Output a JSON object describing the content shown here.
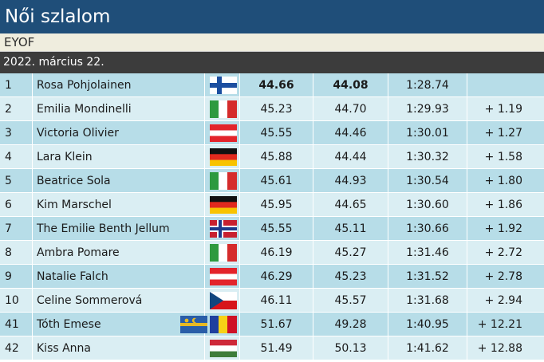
{
  "header": {
    "title": "Női szlalom",
    "subtitle": "EYOF",
    "date": "2022. március 22."
  },
  "results": [
    {
      "rank": "1",
      "name": "Rosa Pohjolainen",
      "flag": "finland-flag",
      "run1": "44.66",
      "run2": "44.08",
      "total": "1:28.74",
      "diff": "",
      "best": true
    },
    {
      "rank": "2",
      "name": "Emilia Mondinelli",
      "flag": "italy-flag",
      "run1": "45.23",
      "run2": "44.70",
      "total": "1:29.93",
      "diff": "+ 1.19"
    },
    {
      "rank": "3",
      "name": "Victoria Olivier",
      "flag": "austria-flag",
      "run1": "45.55",
      "run2": "44.46",
      "total": "1:30.01",
      "diff": "+ 1.27"
    },
    {
      "rank": "4",
      "name": "Lara Klein",
      "flag": "germany-flag",
      "run1": "45.88",
      "run2": "44.44",
      "total": "1:30.32",
      "diff": "+ 1.58"
    },
    {
      "rank": "5",
      "name": "Beatrice Sola",
      "flag": "italy-flag",
      "run1": "45.61",
      "run2": "44.93",
      "total": "1:30.54",
      "diff": "+ 1.80"
    },
    {
      "rank": "6",
      "name": "Kim Marschel",
      "flag": "germany-flag",
      "run1": "45.95",
      "run2": "44.65",
      "total": "1:30.60",
      "diff": "+ 1.86"
    },
    {
      "rank": "7",
      "name": "The Emilie Benth Jellum",
      "flag": "norway-flag",
      "run1": "45.55",
      "run2": "45.11",
      "total": "1:30.66",
      "diff": "+ 1.92"
    },
    {
      "rank": "8",
      "name": "Ambra Pomare",
      "flag": "italy-flag",
      "run1": "46.19",
      "run2": "45.27",
      "total": "1:31.46",
      "diff": "+ 2.72"
    },
    {
      "rank": "9",
      "name": "Natalie Falch",
      "flag": "austria-flag",
      "run1": "46.29",
      "run2": "45.23",
      "total": "1:31.52",
      "diff": "+ 2.78"
    },
    {
      "rank": "10",
      "name": "Celine Sommerová",
      "flag": "czech-flag",
      "run1": "46.11",
      "run2": "45.57",
      "total": "1:31.68",
      "diff": "+ 2.94"
    },
    {
      "rank": "41",
      "name": "Tóth Emese",
      "flag": "romania-flag",
      "extra_flag": "szekely-flag",
      "run1": "51.67",
      "run2": "49.28",
      "total": "1:40.95",
      "diff": "+ 12.21"
    },
    {
      "rank": "42",
      "name": "Kiss Anna",
      "flag": "hungary-flag",
      "run1": "51.49",
      "run2": "50.13",
      "total": "1:41.62",
      "diff": "+ 12.88"
    }
  ],
  "colors": {
    "title_bg": "#1f4e79",
    "subtitle_bg": "#efedde",
    "date_bg": "#3c3c3c",
    "row_odd": "#b7dde8",
    "row_even": "#daeef3"
  }
}
